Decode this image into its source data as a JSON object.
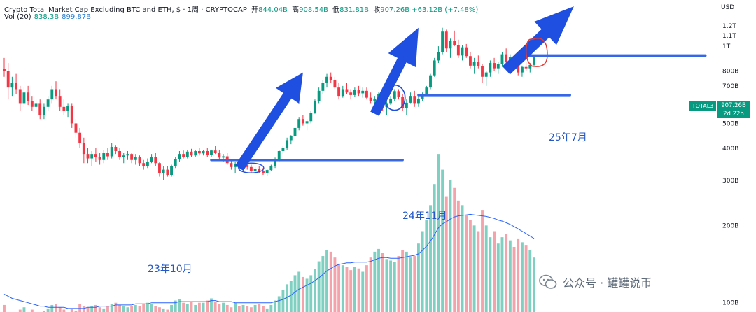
{
  "header": {
    "title": "Crypto Total Market Cap Excluding BTC and ETH, $ · 1周 · CRYPTOCAP",
    "open_label": "开",
    "open": "844.04B",
    "high_label": "高",
    "high": "908.54B",
    "low_label": "低",
    "low": "831.81B",
    "close_label": "收",
    "close": "907.26B",
    "change": "+63.12B (+7.48%)"
  },
  "volume": {
    "label": "Vol (20)",
    "value": "838.3B",
    "ma": "899.87B"
  },
  "currency": "USD",
  "price_tag": {
    "symbol": "TOTAL3",
    "price": "907.26B",
    "countdown": "2d 22h"
  },
  "annotations": [
    "23年10月",
    "24年11月",
    "25年7月"
  ],
  "watermark": "公众号 · 罐罐说币",
  "colors": {
    "up": "#089981",
    "down": "#f23645",
    "arrow": "#1f4fe0",
    "line": "#3567e8"
  },
  "chart_data": {
    "type": "candlestick",
    "title": "Crypto Total Market Cap Excluding BTC and ETH, $ · 1周 · CRYPTOCAP",
    "y_scale": "log",
    "y_ticks": [
      "1.2T",
      "1.1T",
      "1T",
      "800B",
      "700B",
      "600B",
      "500B",
      "400B",
      "300B",
      "200B",
      "100B"
    ],
    "y_tick_values": [
      1200,
      1100,
      1000,
      800,
      700,
      600,
      500,
      400,
      300,
      200,
      100
    ],
    "ylim": [
      92,
      1440
    ],
    "unit": "B",
    "series": [
      {
        "values": [
          [
            815,
            900,
            760,
            800
          ],
          [
            800,
            860,
            620,
            690
          ],
          [
            690,
            760,
            640,
            720
          ],
          [
            720,
            780,
            650,
            680
          ],
          [
            680,
            700,
            560,
            600
          ],
          [
            600,
            690,
            580,
            660
          ],
          [
            660,
            700,
            590,
            610
          ],
          [
            610,
            640,
            560,
            580
          ],
          [
            580,
            620,
            550,
            600
          ],
          [
            600,
            620,
            520,
            540
          ],
          [
            540,
            600,
            520,
            580
          ],
          [
            580,
            640,
            560,
            620
          ],
          [
            620,
            700,
            600,
            680
          ],
          [
            680,
            730,
            620,
            640
          ],
          [
            640,
            680,
            560,
            580
          ],
          [
            580,
            620,
            540,
            560
          ],
          [
            560,
            600,
            530,
            585
          ],
          [
            585,
            600,
            480,
            500
          ],
          [
            500,
            520,
            440,
            460
          ],
          [
            460,
            480,
            400,
            420
          ],
          [
            420,
            440,
            350,
            380
          ],
          [
            380,
            400,
            350,
            365
          ],
          [
            365,
            390,
            340,
            380
          ],
          [
            380,
            400,
            355,
            370
          ],
          [
            370,
            385,
            345,
            360
          ],
          [
            360,
            395,
            350,
            385
          ],
          [
            385,
            400,
            360,
            372
          ],
          [
            372,
            420,
            365,
            405
          ],
          [
            405,
            412,
            380,
            390
          ],
          [
            390,
            400,
            360,
            370
          ],
          [
            370,
            385,
            350,
            375
          ],
          [
            375,
            390,
            360,
            380
          ],
          [
            380,
            385,
            350,
            360
          ],
          [
            360,
            380,
            345,
            370
          ],
          [
            370,
            375,
            340,
            350
          ],
          [
            350,
            360,
            330,
            340
          ],
          [
            340,
            365,
            335,
            355
          ],
          [
            355,
            380,
            350,
            370
          ],
          [
            370,
            385,
            340,
            350
          ],
          [
            350,
            355,
            310,
            320
          ],
          [
            320,
            340,
            300,
            330
          ],
          [
            330,
            340,
            310,
            315
          ],
          [
            315,
            345,
            310,
            340
          ],
          [
            340,
            370,
            335,
            362
          ],
          [
            362,
            390,
            355,
            380
          ],
          [
            380,
            392,
            365,
            370
          ],
          [
            370,
            395,
            365,
            388
          ],
          [
            388,
            398,
            370,
            375
          ],
          [
            375,
            395,
            370,
            390
          ],
          [
            390,
            400,
            375,
            382
          ],
          [
            382,
            395,
            375,
            390
          ],
          [
            390,
            400,
            370,
            376
          ],
          [
            376,
            395,
            370,
            392
          ],
          [
            392,
            410,
            380,
            385
          ],
          [
            385,
            395,
            360,
            368
          ],
          [
            368,
            380,
            355,
            372
          ],
          [
            372,
            385,
            345,
            350
          ],
          [
            350,
            360,
            330,
            338
          ],
          [
            338,
            355,
            320,
            348
          ],
          [
            348,
            358,
            330,
            335
          ],
          [
            335,
            350,
            328,
            345
          ],
          [
            345,
            355,
            330,
            338
          ],
          [
            338,
            345,
            320,
            325
          ],
          [
            325,
            338,
            318,
            332
          ],
          [
            332,
            340,
            320,
            327
          ],
          [
            327,
            335,
            315,
            320
          ],
          [
            320,
            332,
            312,
            329
          ],
          [
            329,
            345,
            325,
            340
          ],
          [
            340,
            368,
            335,
            360
          ],
          [
            360,
            395,
            355,
            390
          ],
          [
            390,
            410,
            380,
            400
          ],
          [
            400,
            440,
            395,
            430
          ],
          [
            430,
            450,
            415,
            445
          ],
          [
            445,
            490,
            440,
            480
          ],
          [
            480,
            530,
            470,
            520
          ],
          [
            520,
            540,
            490,
            500
          ],
          [
            500,
            520,
            470,
            510
          ],
          [
            510,
            560,
            500,
            550
          ],
          [
            550,
            620,
            545,
            610
          ],
          [
            610,
            690,
            600,
            670
          ],
          [
            670,
            740,
            650,
            720
          ],
          [
            720,
            780,
            690,
            760
          ],
          [
            760,
            790,
            720,
            740
          ],
          [
            740,
            760,
            680,
            690
          ],
          [
            690,
            720,
            620,
            640
          ],
          [
            640,
            700,
            630,
            680
          ],
          [
            680,
            720,
            650,
            660
          ],
          [
            660,
            680,
            620,
            645
          ],
          [
            645,
            690,
            635,
            675
          ],
          [
            675,
            700,
            640,
            655
          ],
          [
            655,
            690,
            630,
            670
          ],
          [
            670,
            690,
            620,
            630
          ],
          [
            630,
            660,
            600,
            612
          ],
          [
            612,
            640,
            580,
            625
          ],
          [
            625,
            660,
            610,
            650
          ],
          [
            650,
            670,
            560,
            580
          ],
          [
            580,
            620,
            540,
            600
          ],
          [
            600,
            640,
            590,
            625
          ],
          [
            625,
            680,
            610,
            668
          ],
          [
            668,
            680,
            620,
            635
          ],
          [
            635,
            650,
            560,
            575
          ],
          [
            575,
            620,
            540,
            602
          ],
          [
            602,
            660,
            600,
            640
          ],
          [
            640,
            670,
            580,
            600
          ],
          [
            600,
            640,
            580,
            625
          ],
          [
            625,
            660,
            610,
            645
          ],
          [
            645,
            700,
            640,
            690
          ],
          [
            690,
            780,
            680,
            770
          ],
          [
            770,
            900,
            760,
            880
          ],
          [
            880,
            1000,
            860,
            950
          ],
          [
            950,
            1180,
            930,
            1140
          ],
          [
            1140,
            1160,
            950,
            980
          ],
          [
            980,
            1070,
            900,
            1050
          ],
          [
            1050,
            1150,
            1000,
            1010
          ],
          [
            1010,
            1060,
            900,
            920
          ],
          [
            920,
            1010,
            880,
            990
          ],
          [
            990,
            1020,
            900,
            915
          ],
          [
            915,
            950,
            820,
            840
          ],
          [
            840,
            900,
            780,
            870
          ],
          [
            870,
            920,
            820,
            835
          ],
          [
            835,
            850,
            720,
            760
          ],
          [
            760,
            800,
            700,
            790
          ],
          [
            790,
            880,
            760,
            860
          ],
          [
            860,
            900,
            800,
            820
          ],
          [
            820,
            870,
            780,
            850
          ],
          [
            850,
            950,
            830,
            930
          ],
          [
            930,
            980,
            850,
            870
          ],
          [
            870,
            930,
            820,
            910
          ],
          [
            910,
            940,
            850,
            860
          ],
          [
            860,
            880,
            770,
            790
          ],
          [
            790,
            840,
            760,
            830
          ],
          [
            830,
            870,
            800,
            820
          ],
          [
            820,
            860,
            790,
            845
          ],
          [
            845,
            908,
            832,
            907
          ]
        ]
      }
    ],
    "volume_label": "Vol (20)",
    "volume": [
      98,
      92,
      88,
      90,
      94,
      96,
      91,
      94,
      92,
      90,
      93,
      95,
      98,
      99,
      96,
      94,
      92,
      95,
      93,
      99,
      97,
      96,
      97,
      98,
      96,
      95,
      97,
      99,
      100,
      98,
      97,
      96,
      97,
      98,
      97,
      99,
      100,
      99,
      97,
      96,
      95,
      94,
      98,
      102,
      103,
      100,
      99,
      101,
      98,
      100,
      100,
      102,
      104,
      101,
      99,
      100,
      98,
      96,
      100,
      97,
      98,
      97,
      96,
      98,
      99,
      97,
      95,
      98,
      102,
      106,
      112,
      118,
      122,
      128,
      132,
      126,
      124,
      128,
      135,
      145,
      152,
      160,
      158,
      150,
      142,
      140,
      138,
      134,
      138,
      136,
      132,
      140,
      150,
      158,
      162,
      156,
      148,
      146,
      144,
      152,
      160,
      158,
      150,
      152,
      170,
      190,
      210,
      240,
      290,
      380,
      330,
      260,
      300,
      280,
      250,
      240,
      220,
      210,
      200,
      190,
      230,
      200,
      180,
      190,
      170,
      180,
      185,
      175,
      165,
      178,
      172,
      168,
      160,
      150
    ],
    "volume_ma": [
      108,
      106,
      104,
      103,
      102,
      101,
      100,
      99,
      98,
      97,
      97,
      96,
      96,
      96,
      96,
      96,
      95,
      95,
      95,
      95,
      95,
      96,
      96,
      96,
      97,
      97,
      97,
      97,
      98,
      98,
      98,
      98,
      98,
      99,
      99,
      99,
      99,
      100,
      100,
      100,
      100,
      100,
      100,
      100,
      101,
      101,
      101,
      101,
      101,
      101,
      101,
      101,
      102,
      102,
      101,
      101,
      101,
      101,
      100,
      100,
      100,
      100,
      100,
      100,
      100,
      100,
      100,
      100,
      101,
      102,
      103,
      105,
      107,
      110,
      113,
      115,
      117,
      119,
      122,
      125,
      129,
      133,
      136,
      139,
      141,
      142,
      143,
      143,
      144,
      144,
      144,
      144,
      145,
      147,
      149,
      150,
      150,
      149,
      149,
      149,
      150,
      151,
      152,
      153,
      155,
      160,
      166,
      174,
      184,
      196,
      203,
      207,
      212,
      216,
      218,
      219,
      220,
      221,
      220,
      219,
      218,
      217,
      215,
      213,
      210,
      208,
      205,
      202,
      198,
      194,
      190,
      186,
      182,
      178
    ],
    "horizontal_levels": [
      {
        "y": 360,
        "from": 52,
        "to": 100
      },
      {
        "y": 645,
        "from": 104,
        "to": 142
      },
      {
        "y": 920,
        "from": 130,
        "to": 176
      }
    ],
    "last_close": 907.26
  }
}
